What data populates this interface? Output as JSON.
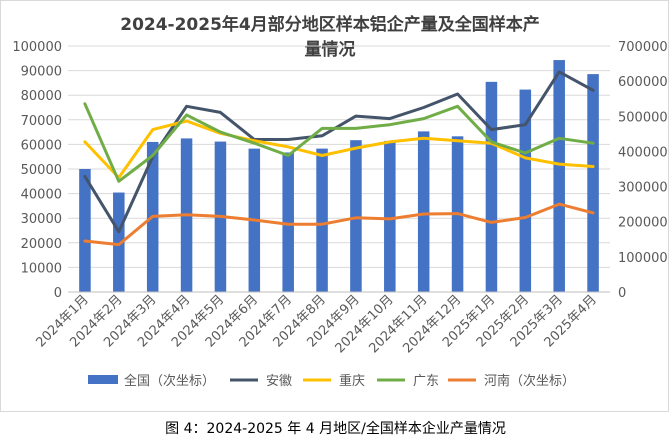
{
  "caption": "图 4：2024-2025 年 4 月地区/全国样本企业产量情况",
  "chart_data": {
    "type": "bar",
    "title_line1": "2024-2025年4月部分地区样本铝企产量及全国样本产",
    "title_line2": "量情况",
    "categories": [
      "2024年1月",
      "2024年2月",
      "2024年3月",
      "2024年4月",
      "2024年5月",
      "2024年6月",
      "2024年7月",
      "2024年8月",
      "2024年9月",
      "2024年10月",
      "2024年11月",
      "2024年12月",
      "2025年1月",
      "2025年2月",
      "2025年3月",
      "2025年4月"
    ],
    "y_left": {
      "ylim": [
        0,
        100000
      ],
      "ticks": [
        "0",
        "10000",
        "20000",
        "30000",
        "40000",
        "50000",
        "60000",
        "70000",
        "80000",
        "90000",
        "100000"
      ]
    },
    "y_right": {
      "ylim": [
        0,
        700000
      ],
      "ticks": [
        "0",
        "100000",
        "200000",
        "300000",
        "400000",
        "500000",
        "600000",
        "700000"
      ]
    },
    "series": [
      {
        "name": "全国（次坐标）",
        "kind": "bar",
        "axis": "right",
        "color": "#4472C4",
        "values": [
          350000,
          283000,
          427000,
          437000,
          428000,
          408000,
          397000,
          408000,
          432000,
          430000,
          457000,
          443000,
          598000,
          576000,
          660000,
          620000
        ]
      },
      {
        "name": "安徽",
        "kind": "line",
        "axis": "left",
        "color": "#44546A",
        "values": [
          47000,
          24500,
          55000,
          75500,
          73000,
          62000,
          62000,
          63500,
          71500,
          70500,
          75000,
          80500,
          66000,
          68000,
          89500,
          82000
        ]
      },
      {
        "name": "重庆",
        "kind": "line",
        "axis": "left",
        "color": "#FFC000",
        "values": [
          61000,
          46500,
          66000,
          69500,
          64500,
          61500,
          59000,
          55500,
          58500,
          61000,
          62500,
          61500,
          60500,
          54500,
          52000,
          51000
        ]
      },
      {
        "name": "广东",
        "kind": "line",
        "axis": "left",
        "color": "#70AD47",
        "values": [
          76500,
          45000,
          55500,
          72000,
          65000,
          60500,
          55500,
          66500,
          66500,
          68000,
          70500,
          75500,
          61000,
          56500,
          62500,
          60500
        ]
      },
      {
        "name": "河南（次坐标）",
        "kind": "line",
        "axis": "right",
        "color": "#ED7D31",
        "values": [
          145000,
          135000,
          215000,
          220000,
          215000,
          205000,
          193000,
          193000,
          211000,
          208000,
          222000,
          223000,
          198000,
          212000,
          250000,
          225000
        ]
      }
    ],
    "grid": true,
    "legend_position": "bottom"
  }
}
